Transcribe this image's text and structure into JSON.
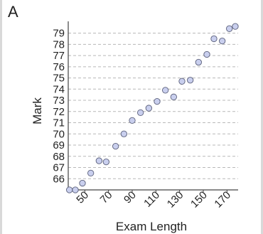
{
  "panel_label": "A",
  "colors": {
    "marker_fill": "#c9cfee",
    "marker_stroke": "#5a5f7a",
    "grid": "#b8b8b8",
    "axis": "#444444",
    "text": "#222222"
  },
  "chart_data": {
    "type": "scatter",
    "xlabel": "Exam Length",
    "ylabel": "Mark",
    "xlim": [
      36,
      177
    ],
    "ylim": [
      65,
      79.8
    ],
    "x_ticks": [
      50,
      70,
      90,
      110,
      130,
      150,
      170
    ],
    "y_ticks": [
      66,
      67,
      68,
      69,
      70,
      71,
      72,
      73,
      74,
      75,
      76,
      77,
      78,
      79
    ],
    "grid": "horizontal dashed",
    "legend": "none",
    "points": [
      {
        "x": 37,
        "y": 65
      },
      {
        "x": 42,
        "y": 65
      },
      {
        "x": 48,
        "y": 65.6
      },
      {
        "x": 55,
        "y": 66.5
      },
      {
        "x": 62,
        "y": 67.6
      },
      {
        "x": 68,
        "y": 67.5
      },
      {
        "x": 76,
        "y": 68.9
      },
      {
        "x": 83,
        "y": 70
      },
      {
        "x": 90,
        "y": 71.2
      },
      {
        "x": 97,
        "y": 71.9
      },
      {
        "x": 104,
        "y": 72.3
      },
      {
        "x": 111,
        "y": 72.9
      },
      {
        "x": 118,
        "y": 73.9
      },
      {
        "x": 125,
        "y": 73.3
      },
      {
        "x": 132,
        "y": 74.7
      },
      {
        "x": 139,
        "y": 74.8
      },
      {
        "x": 146,
        "y": 76.4
      },
      {
        "x": 153,
        "y": 77.1
      },
      {
        "x": 159,
        "y": 78.5
      },
      {
        "x": 166,
        "y": 78.3
      },
      {
        "x": 172,
        "y": 79.4
      },
      {
        "x": 177,
        "y": 79.6
      }
    ]
  }
}
